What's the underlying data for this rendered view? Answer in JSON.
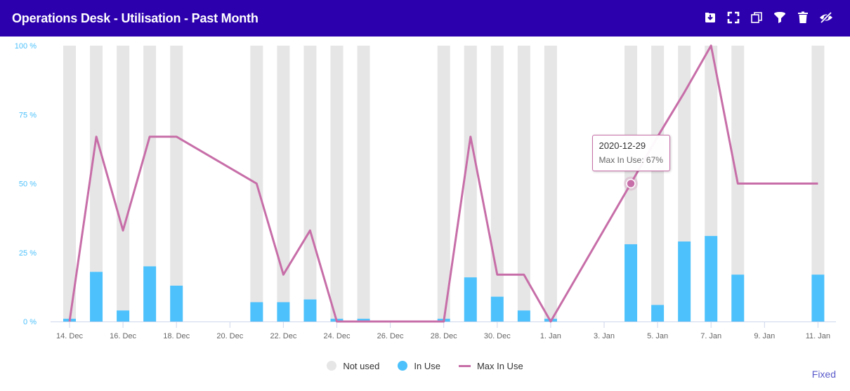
{
  "header": {
    "title": "Operations Desk - Utilisation - Past Month",
    "background": "#2c00ad"
  },
  "toolbar": [
    {
      "name": "download-icon"
    },
    {
      "name": "fullscreen-icon"
    },
    {
      "name": "copy-icon"
    },
    {
      "name": "filter-icon"
    },
    {
      "name": "trash-icon"
    },
    {
      "name": "hide-icon"
    }
  ],
  "footer": {
    "fixed_label": "Fixed"
  },
  "tooltip": {
    "date": "2020-12-29",
    "text": "Max In Use: 67%",
    "index": 15
  },
  "chart_data": {
    "type": "bar",
    "x_tick_labels": [
      "14. Dec",
      "16. Dec",
      "18. Dec",
      "20. Dec",
      "22. Dec",
      "24. Dec",
      "26. Dec",
      "28. Dec",
      "30. Dec",
      "1. Jan",
      "3. Jan",
      "5. Jan",
      "7. Jan",
      "9. Jan",
      "11. Jan"
    ],
    "y_tick_labels": [
      "0 %",
      "25 %",
      "50 %",
      "75 %",
      "100 %"
    ],
    "ylim": [
      0,
      100
    ],
    "legend_position": "bottom-center",
    "colors": {
      "not_used": "#e6e6e6",
      "in_use": "#4dc1fb",
      "max_in_use": "#c76ea8",
      "axis_text": "#666666",
      "y_axis_text": "#4dc1fb"
    },
    "series": [
      {
        "name": "Not used",
        "type": "bar",
        "dates": [
          "2020-12-14",
          "2020-12-15",
          "2020-12-16",
          "2020-12-17",
          "2020-12-18",
          "2020-12-21",
          "2020-12-22",
          "2020-12-23",
          "2020-12-24",
          "2020-12-25",
          "2020-12-28",
          "2020-12-29",
          "2020-12-30",
          "2020-12-31",
          "2021-01-01",
          "2021-01-04",
          "2021-01-05",
          "2021-01-06",
          "2021-01-07",
          "2021-01-08",
          "2021-01-11"
        ],
        "values": [
          99,
          82,
          96,
          80,
          87,
          93,
          93,
          92,
          99,
          99,
          99,
          84,
          91,
          96,
          99,
          72,
          94,
          71,
          69,
          83,
          83
        ]
      },
      {
        "name": "In Use",
        "type": "bar",
        "dates": [
          "2020-12-14",
          "2020-12-15",
          "2020-12-16",
          "2020-12-17",
          "2020-12-18",
          "2020-12-21",
          "2020-12-22",
          "2020-12-23",
          "2020-12-24",
          "2020-12-25",
          "2020-12-28",
          "2020-12-29",
          "2020-12-30",
          "2020-12-31",
          "2021-01-01",
          "2021-01-04",
          "2021-01-05",
          "2021-01-06",
          "2021-01-07",
          "2021-01-08",
          "2021-01-11"
        ],
        "values": [
          1,
          18,
          4,
          20,
          13,
          7,
          7,
          8,
          1,
          1,
          1,
          16,
          9,
          4,
          1,
          28,
          6,
          29,
          31,
          17,
          17
        ]
      },
      {
        "name": "Max In Use",
        "type": "line",
        "dates": [
          "2020-12-14",
          "2020-12-15",
          "2020-12-16",
          "2020-12-17",
          "2020-12-18",
          "2020-12-21",
          "2020-12-22",
          "2020-12-23",
          "2020-12-24",
          "2020-12-25",
          "2020-12-28",
          "2020-12-29",
          "2020-12-30",
          "2020-12-31",
          "2021-01-01",
          "2021-01-04",
          "2021-01-05",
          "2021-01-06",
          "2021-01-07",
          "2021-01-08",
          "2021-01-11"
        ],
        "values": [
          0,
          67,
          33,
          67,
          67,
          50,
          17,
          33,
          0,
          0,
          0,
          67,
          17,
          17,
          0,
          50,
          67,
          83,
          100,
          50,
          50
        ]
      }
    ]
  }
}
